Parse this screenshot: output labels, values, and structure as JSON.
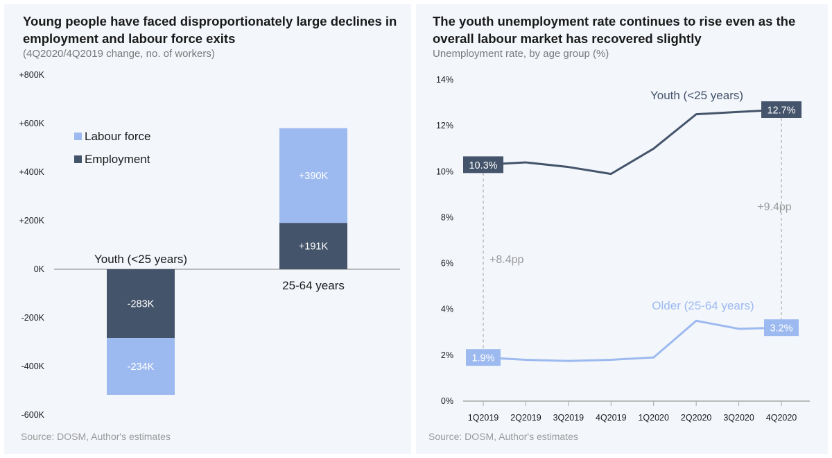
{
  "colors": {
    "employment": "#44546a",
    "labour_force": "#9dbaf0",
    "youth_line": "#44546a",
    "older_line": "#9dbaf0",
    "annotation": "#9a9a9a",
    "panel_bg": "#f3f6fb"
  },
  "left": {
    "title": "Young people have faced disproportionately large declines in employment and labour force exits",
    "subtitle": "(4Q2020/4Q2019 change, no. of workers)",
    "source": "Source: DOSM, Author's estimates"
  },
  "right": {
    "title": "The youth unemployment rate continues to rise even as the overall labour market has recovered slightly",
    "subtitle": "Unemployment rate, by age group (%)",
    "source": "Source: DOSM, Author's estimates"
  },
  "chart_data": [
    {
      "type": "bar",
      "stacked": true,
      "categories": [
        "Youth (<25 years)",
        "25-64 years"
      ],
      "series": [
        {
          "name": "Employment",
          "values": [
            -283,
            191
          ],
          "labels": [
            "-283K",
            "+191K"
          ]
        },
        {
          "name": "Labour force",
          "values": [
            -234,
            390
          ],
          "labels": [
            "-234K",
            "+390K"
          ]
        }
      ],
      "ylim": [
        -600,
        800
      ],
      "yticks": [
        800,
        600,
        400,
        200,
        0,
        -200,
        -400,
        -600
      ],
      "ytick_labels": [
        "+800K",
        "+600K",
        "+400K",
        "+200K",
        "0K",
        "-200K",
        "-400K",
        "-600K"
      ],
      "legend": [
        "Labour force",
        "Employment"
      ],
      "legend_position": "top-left",
      "grid": false
    },
    {
      "type": "line",
      "x": [
        "1Q2019",
        "2Q2019",
        "3Q2019",
        "4Q2019",
        "1Q2020",
        "2Q2020",
        "3Q2020",
        "4Q2020"
      ],
      "series": [
        {
          "name": "Youth (<25 years)",
          "values": [
            10.3,
            10.4,
            10.2,
            9.9,
            11.0,
            12.5,
            12.6,
            12.7
          ]
        },
        {
          "name": "Older (25-64 years)",
          "values": [
            1.9,
            1.8,
            1.75,
            1.8,
            1.9,
            3.5,
            3.15,
            3.2
          ]
        }
      ],
      "ylim": [
        0,
        14
      ],
      "yticks": [
        0,
        2,
        4,
        6,
        8,
        10,
        12,
        14
      ],
      "ytick_labels": [
        "0%",
        "2%",
        "4%",
        "6%",
        "8%",
        "10%",
        "12%",
        "14%"
      ],
      "point_labels": [
        {
          "text": "10.3%",
          "series": 0,
          "index": 0
        },
        {
          "text": "12.7%",
          "series": 0,
          "index": 7
        },
        {
          "text": "1.9%",
          "series": 1,
          "index": 0
        },
        {
          "text": "3.2%",
          "series": 1,
          "index": 7
        }
      ],
      "gap_annotations": [
        {
          "text": "+8.4pp",
          "index": 0
        },
        {
          "text": "+9.4pp",
          "index": 7
        }
      ],
      "grid": false
    }
  ]
}
